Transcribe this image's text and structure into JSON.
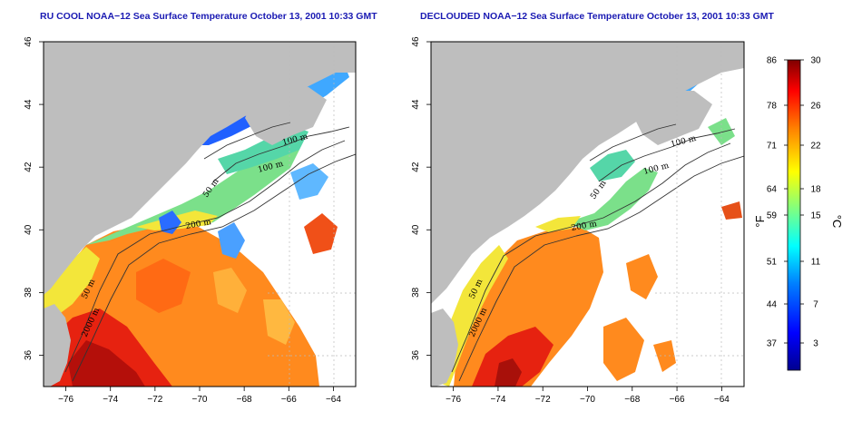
{
  "panels": [
    {
      "id": "left",
      "title": "RU COOL NOAA−12 Sea Surface Temperature October 13, 2001 10:33 GMT",
      "contour_labels": [
        "100 m",
        "100 m",
        "50 m",
        "200 m",
        "50 m",
        "2000 m"
      ]
    },
    {
      "id": "right",
      "title": "DECLOUDED NOAA−12 Sea Surface Temperature October 13, 2001 10:33 GMT",
      "contour_labels": [
        "100 m",
        "100 m",
        "50 m",
        "200 m",
        "50 m",
        "2000 m"
      ]
    }
  ],
  "axes": {
    "x_ticks": [
      "−76",
      "−74",
      "−72",
      "−70",
      "−68",
      "−66",
      "−64"
    ],
    "y_ticks": [
      "36",
      "38",
      "40",
      "42",
      "44",
      "46"
    ],
    "lon_range": [
      -77,
      -63
    ],
    "lat_range": [
      35,
      46
    ]
  },
  "colorbar": {
    "fahrenheit_ticks": [
      "86",
      "78",
      "71",
      "64",
      "59",
      "51",
      "44",
      "37"
    ],
    "celsius_ticks": [
      "30",
      "26",
      "22",
      "18",
      "15",
      "11",
      "7",
      "3"
    ],
    "left_unit": "°F",
    "right_unit": "°C",
    "colors": [
      "#00008f",
      "#0000ff",
      "#0080ff",
      "#00ffff",
      "#80ff80",
      "#ffff00",
      "#ff8000",
      "#ff0000",
      "#800000"
    ]
  },
  "colors": {
    "land": "#bebebe",
    "title": "#1a1ab3",
    "grid": "#bbbbbb"
  }
}
